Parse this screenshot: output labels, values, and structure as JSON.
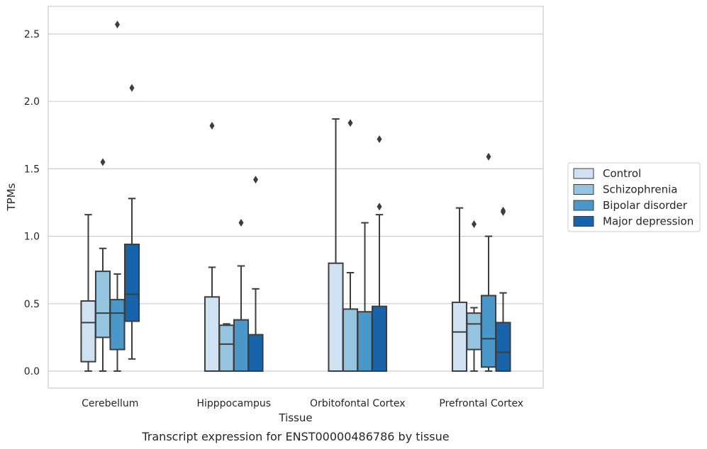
{
  "caption": "Transcript expression for ENST00000486786 by tissue",
  "chart_data": {
    "type": "box",
    "xlabel": "Tissue",
    "ylabel": "TPMs",
    "ylim": [
      -0.12,
      2.7
    ],
    "yticks": [
      "0.0",
      "0.5",
      "1.0",
      "1.5",
      "2.0",
      "2.5"
    ],
    "grid": true,
    "legend_placement": "right",
    "categories": [
      "Cerebellum",
      "Hipppocampus",
      "Orbitofontal Cortex",
      "Prefrontal Cortex"
    ],
    "series": [
      {
        "name": "Control",
        "color": "#d0e1f2",
        "boxes": [
          {
            "whisker_low": 0.0,
            "q1": 0.07,
            "median": 0.36,
            "q3": 0.52,
            "whisker_high": 1.16,
            "outliers": []
          },
          {
            "whisker_low": 0.0,
            "q1": 0.0,
            "median": 0.0,
            "q3": 0.55,
            "whisker_high": 0.77,
            "outliers": [
              1.82
            ]
          },
          {
            "whisker_low": 0.0,
            "q1": 0.0,
            "median": 0.0,
            "q3": 0.8,
            "whisker_high": 1.87,
            "outliers": []
          },
          {
            "whisker_low": 0.0,
            "q1": 0.0,
            "median": 0.29,
            "q3": 0.51,
            "whisker_high": 1.21,
            "outliers": []
          }
        ]
      },
      {
        "name": "Schizophrenia",
        "color": "#94c4df",
        "boxes": [
          {
            "whisker_low": 0.0,
            "q1": 0.25,
            "median": 0.43,
            "q3": 0.74,
            "whisker_high": 0.91,
            "outliers": [
              1.55
            ]
          },
          {
            "whisker_low": 0.0,
            "q1": 0.0,
            "median": 0.2,
            "q3": 0.34,
            "whisker_high": 0.35,
            "outliers": []
          },
          {
            "whisker_low": 0.0,
            "q1": 0.0,
            "median": 0.0,
            "q3": 0.46,
            "whisker_high": 0.73,
            "outliers": [
              1.84
            ]
          },
          {
            "whisker_low": 0.0,
            "q1": 0.16,
            "median": 0.35,
            "q3": 0.43,
            "whisker_high": 0.47,
            "outliers": [
              1.09
            ]
          }
        ]
      },
      {
        "name": "Bipolar disorder",
        "color": "#4a98c9",
        "boxes": [
          {
            "whisker_low": 0.0,
            "q1": 0.16,
            "median": 0.43,
            "q3": 0.53,
            "whisker_high": 0.72,
            "outliers": [
              2.57
            ]
          },
          {
            "whisker_low": 0.0,
            "q1": 0.0,
            "median": 0.0,
            "q3": 0.38,
            "whisker_high": 0.78,
            "outliers": [
              1.1
            ]
          },
          {
            "whisker_low": 0.0,
            "q1": 0.0,
            "median": 0.0,
            "q3": 0.44,
            "whisker_high": 1.1,
            "outliers": []
          },
          {
            "whisker_low": 0.0,
            "q1": 0.03,
            "median": 0.24,
            "q3": 0.56,
            "whisker_high": 1.0,
            "outliers": [
              1.59
            ]
          }
        ]
      },
      {
        "name": "Major depression",
        "color": "#1764ab",
        "boxes": [
          {
            "whisker_low": 0.09,
            "q1": 0.37,
            "median": 0.57,
            "q3": 0.94,
            "whisker_high": 1.28,
            "outliers": [
              2.1
            ]
          },
          {
            "whisker_low": 0.0,
            "q1": 0.0,
            "median": 0.0,
            "q3": 0.27,
            "whisker_high": 0.61,
            "outliers": [
              1.42
            ]
          },
          {
            "whisker_low": 0.0,
            "q1": 0.0,
            "median": 0.0,
            "q3": 0.48,
            "whisker_high": 1.16,
            "outliers": [
              1.22,
              1.72
            ]
          },
          {
            "whisker_low": 0.0,
            "q1": 0.0,
            "median": 0.14,
            "q3": 0.36,
            "whisker_high": 0.58,
            "outliers": [
              1.18,
              1.19
            ]
          }
        ]
      }
    ]
  }
}
